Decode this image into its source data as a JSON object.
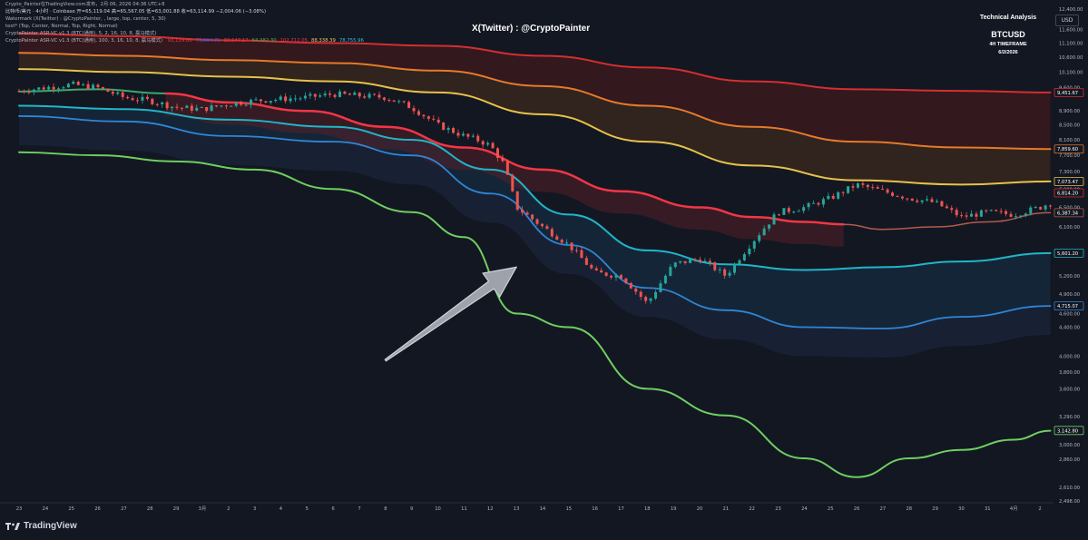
{
  "header": {
    "source_line": "Crypto_Painter在TradingView.com发布，2月 06, 2026 04:36 UTC+8",
    "symbol_line": "比特币/美元 · 4小时 · Coinbase  开=65,119.04  高=65,567.05  低=63,001.88  收=63,114.99  −2,004.06 (−3.08%)",
    "watermark_line": "Watermark (X(Twitter) : @CryptoPainter, , large, top, center, 5, 30)",
    "settings_line": "text* (Top, Center, Normal, Top, Right, Normal)",
    "indicator1_line": "CryptoPainter ASR-VC v1.3 (BTC(通用), 5, 2, 16, 10, 8, 赢马模式)",
    "indicator2_label": "CryptoPainter ASR-VC v1.3 (BTC(通用), 100, 3, 16, 10, 8, 赢马模式)",
    "indicator2_values": [
      "93,129.80",
      "73,964.75",
      "83,547.17",
      "64,382.30",
      "102,712.05",
      "88,338.39",
      "78,755.96"
    ],
    "indicator2_colors": [
      "#f23645",
      "#2962ff",
      "#f23645",
      "#4caf50",
      "#f23645",
      "#f0c36d",
      "#26c6da"
    ]
  },
  "watermark": "X(Twitter) : @CryptoPainter",
  "info_box": {
    "line1": "Technical Analysis",
    "line2": "BTCUSD",
    "line3": "4H TIMEFRAME",
    "line4": "6/2/2026"
  },
  "currency_button": "USD",
  "branding": "TradingView",
  "colors": {
    "background": "#131722",
    "up_candle": "#26a69a",
    "down_candle": "#ef5350",
    "red_band": "#d32f2f",
    "orange_band": "#e57a2a",
    "yellow_band": "#e6c14a",
    "green_top": "#3ca86a",
    "teal_band": "#1fb6c8",
    "blue_band": "#2f86d6",
    "green_bottom": "#6ecf5f",
    "brown_band": "#b45a4a",
    "arrow_fill": "#9ea2aa"
  },
  "chart_data": {
    "type": "line",
    "title": "",
    "xlabel": "",
    "ylabel": "",
    "ylim": [
      2498,
      12400
    ],
    "log_scale": true,
    "x_ticks": [
      "23",
      "24",
      "25",
      "26",
      "27",
      "28",
      "29",
      "3月",
      "2",
      "3",
      "4",
      "5",
      "6",
      "7",
      "8",
      "9",
      "10",
      "11",
      "12",
      "13",
      "14",
      "15",
      "16",
      "17",
      "18",
      "19",
      "20",
      "21",
      "22",
      "23",
      "24",
      "25",
      "26",
      "27",
      "28",
      "29",
      "30",
      "31",
      "4月",
      "2"
    ],
    "y_ticks": [
      "12,400.00",
      "11,600.00",
      "11,100.00",
      "10,600.00",
      "10,100.00",
      "9,600.00",
      "8,900.00",
      "8,500.00",
      "8,100.00",
      "7,700.00",
      "7,300.00",
      "6,900.00",
      "6,500.00",
      "6,100.00",
      "5,600.00",
      "5,200.00",
      "4,900.00",
      "4,600.00",
      "4,400.00",
      "4,000.00",
      "3,800.00",
      "3,600.00",
      "3,290.00",
      "3,000.00",
      "2,860.00",
      "2,610.00",
      "2,498.00"
    ],
    "y_tick_values": [
      12400,
      11600,
      11100,
      10600,
      10100,
      9600,
      8900,
      8500,
      8100,
      7700,
      7300,
      6900,
      6500,
      6100,
      5600,
      5200,
      4900,
      4600,
      4400,
      4000,
      3800,
      3600,
      3290,
      3000,
      2860,
      2610,
      2498
    ],
    "price_labels": [
      {
        "text": "9,451.67",
        "value": 9451.67,
        "color": "#d32f2f"
      },
      {
        "text": "7,859.60",
        "value": 7859.6,
        "color": "#e57a2a"
      },
      {
        "text": "7,073.47",
        "value": 7073.47,
        "color": "#e6c14a"
      },
      {
        "text": "6,814.20",
        "value": 6814.2,
        "color": "#d32f2f"
      },
      {
        "text": "6,387.34",
        "value": 6387.34,
        "color": "#b45a4a"
      },
      {
        "text": "5,601.20",
        "value": 5601.2,
        "color": "#1fb6c8"
      },
      {
        "text": "4,715.07",
        "value": 4715.07,
        "color": "#2f86d6"
      },
      {
        "text": "3,142.80",
        "value": 3142.8,
        "color": "#6ecf5f"
      }
    ],
    "series": [
      {
        "key": "red_top",
        "color": "#d32f2f",
        "width": 2,
        "x": [
          0,
          4,
          8,
          12,
          16,
          20,
          24,
          28,
          32,
          36,
          39.4
        ],
        "values": [
          11450,
          11350,
          11200,
          11100,
          11000,
          10650,
          10250,
          9800,
          9550,
          9500,
          9450
        ]
      },
      {
        "key": "orange",
        "color": "#e57a2a",
        "width": 2,
        "x": [
          0,
          4,
          8,
          12,
          16,
          20,
          24,
          28,
          32,
          36,
          39.4
        ],
        "values": [
          10750,
          10650,
          10500,
          10400,
          10150,
          9650,
          9050,
          8450,
          8050,
          7900,
          7860
        ]
      },
      {
        "key": "yellow",
        "color": "#e6c14a",
        "width": 2,
        "x": [
          0,
          4,
          8,
          12,
          16,
          20,
          24,
          28,
          32,
          36,
          39.4
        ],
        "values": [
          10200,
          10100,
          9950,
          9800,
          9450,
          8800,
          8050,
          7450,
          7100,
          7000,
          7073
        ]
      },
      {
        "key": "green_top",
        "color": "#3ca86a",
        "width": 2,
        "x": [
          0,
          3,
          5.6
        ],
        "values": [
          9480,
          9550,
          9420
        ]
      },
      {
        "key": "red_mid",
        "color": "#f23645",
        "width": 2.5,
        "x": [
          5.6,
          8,
          11,
          14,
          17,
          20,
          23,
          26,
          28,
          30,
          31.5
        ],
        "values": [
          9420,
          9150,
          8900,
          8450,
          7900,
          7350,
          6850,
          6500,
          6300,
          6200,
          6150
        ]
      },
      {
        "key": "brown",
        "color": "#b45a4a",
        "width": 1.5,
        "x": [
          31.5,
          33,
          35,
          37,
          39.4
        ],
        "values": [
          6150,
          6050,
          6100,
          6200,
          6387
        ]
      },
      {
        "key": "teal",
        "color": "#1fb6c8",
        "width": 2,
        "x": [
          0,
          4,
          8,
          12,
          15,
          18,
          21,
          24,
          27,
          30,
          33,
          36,
          39.4
        ],
        "values": [
          9050,
          8950,
          8650,
          8450,
          8100,
          7350,
          6350,
          5650,
          5400,
          5300,
          5350,
          5450,
          5600
        ]
      },
      {
        "key": "blue",
        "color": "#2f86d6",
        "width": 1.8,
        "x": [
          0,
          4,
          8,
          12,
          15,
          18,
          21,
          24,
          27,
          30,
          33,
          36,
          39.4
        ],
        "values": [
          8750,
          8600,
          8200,
          8050,
          7700,
          6800,
          5750,
          5000,
          4650,
          4400,
          4380,
          4550,
          4715
        ]
      },
      {
        "key": "green_bottom",
        "color": "#6ecf5f",
        "width": 2,
        "x": [
          0,
          3,
          6,
          9,
          12,
          15,
          17,
          19,
          21,
          24,
          27,
          30,
          32,
          34,
          36,
          38,
          39.4
        ],
        "values": [
          7780,
          7700,
          7550,
          7350,
          6900,
          6400,
          5900,
          4600,
          4400,
          3600,
          3300,
          2870,
          2700,
          2870,
          2950,
          3050,
          3140
        ]
      }
    ],
    "candles_path": {
      "color_note": "approximate price path",
      "x": [
        0,
        1,
        2,
        3,
        4,
        5,
        6,
        7,
        8,
        9,
        10,
        11,
        12,
        13,
        14,
        15,
        16,
        17,
        17.5,
        18,
        18.5,
        19,
        20,
        21,
        22,
        23,
        24,
        25,
        26,
        27,
        28,
        29,
        30,
        31,
        32,
        33,
        34,
        35,
        36,
        37,
        38,
        39,
        39.4
      ],
      "values": [
        9500,
        9600,
        9700,
        9600,
        9300,
        9200,
        9000,
        8950,
        9100,
        9200,
        9250,
        9300,
        9400,
        9350,
        9300,
        9000,
        8500,
        8200,
        8100,
        7950,
        7500,
        6500,
        6100,
        5750,
        5250,
        5200,
        4750,
        5400,
        5500,
        5200,
        5800,
        6400,
        6500,
        6700,
        7000,
        6850,
        6700,
        6600,
        6300,
        6400,
        6350,
        6500,
        6600
      ]
    }
  }
}
